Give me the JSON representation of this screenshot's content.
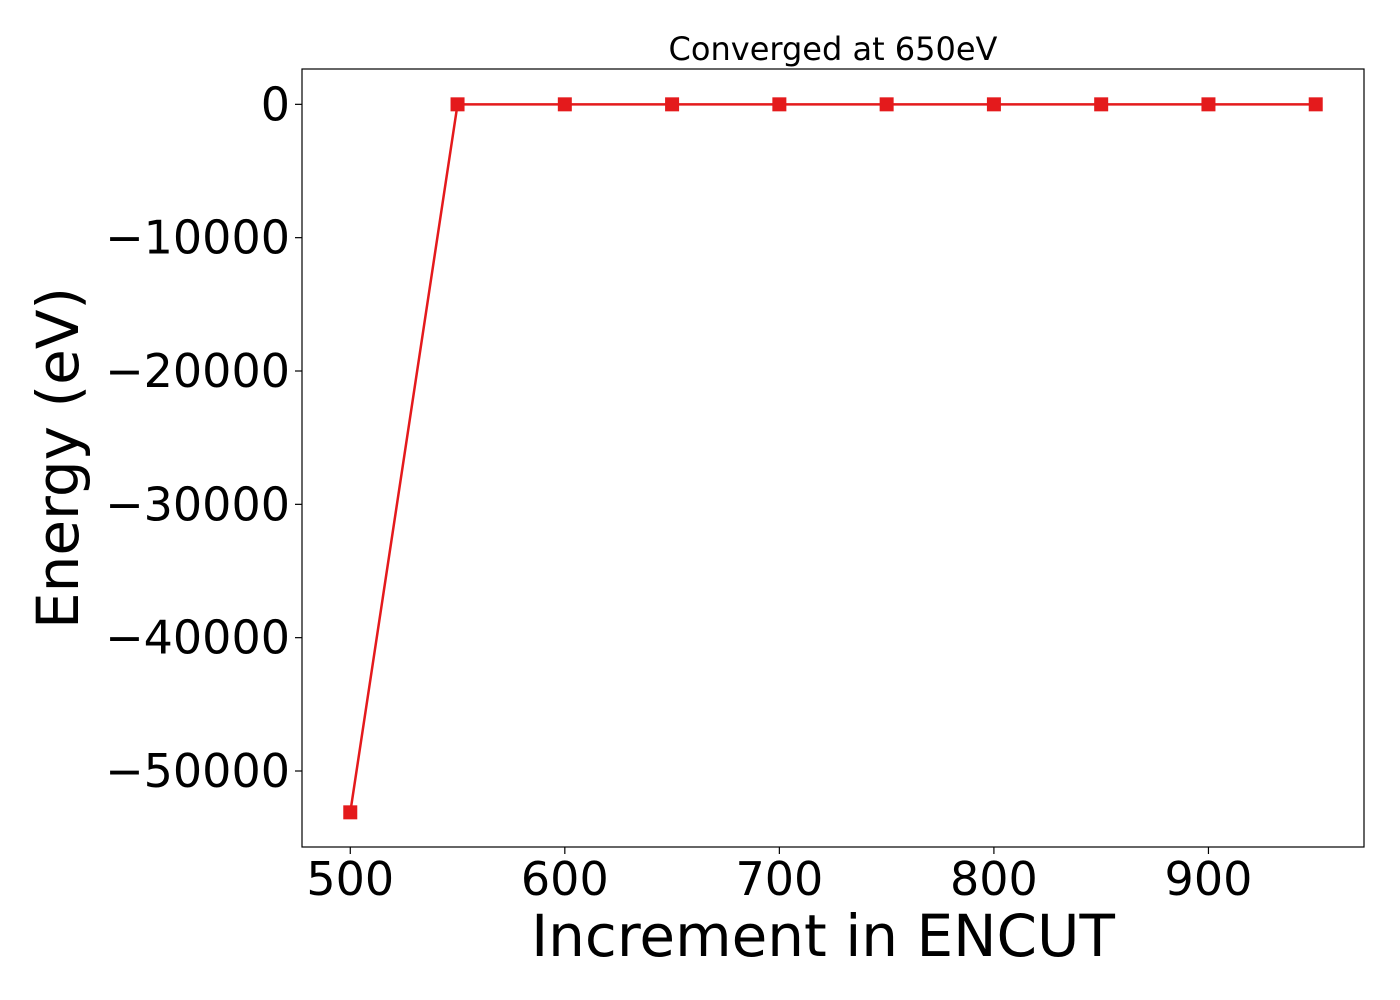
{
  "chart_data": {
    "type": "line",
    "title": "Converged at 650eV",
    "xlabel": "Increment in ENCUT",
    "ylabel": "Energy (eV)",
    "xlim": [
      477.5,
      972.5
    ],
    "ylim": [
      -55700,
      2650
    ],
    "xticks": [
      500,
      600,
      700,
      800,
      900
    ],
    "xtick_labels": [
      "500",
      "600",
      "700",
      "800",
      "900"
    ],
    "yticks": [
      0,
      -10000,
      -20000,
      -30000,
      -40000,
      -50000
    ],
    "ytick_labels": [
      "0",
      "−10000",
      "−20000",
      "−30000",
      "−40000",
      "−50000"
    ],
    "grid": false,
    "legend": "none",
    "series": [
      {
        "color": "#e41a1c",
        "marker": "square",
        "x": [
          500,
          550,
          600,
          650,
          700,
          750,
          800,
          850,
          900,
          950
        ],
        "y": [
          -53100,
          0,
          0,
          0,
          0,
          0,
          0,
          0,
          0,
          0
        ]
      }
    ]
  }
}
